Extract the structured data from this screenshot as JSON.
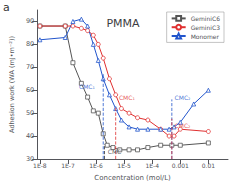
{
  "chart_data": {
    "type": "line",
    "title": "PMMA",
    "panel_label": "a",
    "xlabel": "Concentration (mol/L)",
    "ylabel": "Adhesion work (WA (mJ•m⁻²))",
    "log": "x",
    "grid": false,
    "legend": "upper right",
    "xlim": [
      8e-09,
      0.05
    ],
    "xticks": [
      {
        "value": 1e-08,
        "label": "1E-8"
      },
      {
        "value": 1e-07,
        "label": "1E-7"
      },
      {
        "value": 1e-06,
        "label": "1E-6"
      },
      {
        "value": 1e-05,
        "label": "1E-5"
      },
      {
        "value": 0.0001,
        "label": "1E-4"
      },
      0.001,
      0.01
    ],
    "ylim": [
      30,
      95
    ],
    "yticks": [
      30,
      40,
      50,
      60,
      70,
      80,
      90
    ],
    "series": [
      {
        "name": "GeminiC6",
        "color": "#555555",
        "marker": "square",
        "x": [
          1e-08,
          8e-08,
          1.5e-07,
          3e-07,
          5e-07,
          8e-07,
          1.2e-06,
          1.8e-06,
          2.5e-06,
          4e-06,
          7e-06,
          1.5e-05,
          3e-05,
          7e-05,
          0.0002,
          0.0005,
          0.001,
          0.01
        ],
        "values": [
          88,
          88,
          72,
          63,
          57,
          51,
          50,
          41,
          36,
          35,
          34,
          34,
          34,
          35,
          36,
          36,
          36,
          37
        ]
      },
      {
        "name": "GeminiC3",
        "color": "#e03030",
        "marker": "circle",
        "x": [
          1e-08,
          8e-08,
          1.5e-07,
          3e-07,
          5e-07,
          8e-07,
          1.2e-06,
          1.8e-06,
          3e-06,
          5e-06,
          8e-06,
          1.5e-05,
          3e-05,
          7e-05,
          0.0002,
          0.0004,
          0.0006,
          0.001,
          0.01
        ],
        "values": [
          88,
          88,
          88,
          87,
          86,
          84,
          80,
          74,
          65,
          58,
          52,
          50,
          48,
          47,
          43,
          40,
          40,
          43,
          42
        ]
      },
      {
        "name": "Monomer",
        "color": "#2255cc",
        "marker": "triangle",
        "x": [
          1e-08,
          8e-08,
          1.5e-07,
          3e-07,
          5e-07,
          8e-07,
          1.2e-06,
          1.8e-06,
          3e-06,
          5e-06,
          8e-06,
          1.5e-05,
          3e-05,
          7e-05,
          0.0002,
          0.0004,
          0.0006,
          0.001,
          0.003,
          0.01
        ],
        "values": [
          82,
          83,
          90,
          91,
          88,
          80,
          73,
          65,
          58,
          52,
          47,
          44,
          43,
          43,
          43,
          43,
          44,
          46,
          54,
          60
        ]
      }
    ],
    "vlines": [
      {
        "x": 2e-06,
        "y": [
          30,
          36.5
        ],
        "color": "#333333",
        "line_style": "dashed"
      },
      {
        "x": 1.8e-06,
        "y": [
          30,
          67.05
        ],
        "color": "#2255cc",
        "line_style": "dashed"
      },
      {
        "x": 5e-06,
        "y": [
          30,
          52.75
        ],
        "color": "#e03030",
        "line_style": "dashed"
      },
      {
        "x": 0.0005,
        "y": [
          30,
          56
        ],
        "color": "#2255cc",
        "line_style": "dashed"
      },
      {
        "x": 0.0005,
        "y": [
          30,
          47.55
        ],
        "color": "#e03030",
        "line_style": "dashed"
      }
    ],
    "annotations": [
      {
        "text": "CMC",
        "x": 2.4e-06,
        "y": 31.5,
        "color": "#333333",
        "align": "left"
      },
      {
        "text": "CMC₁",
        "x": 9.9e-07,
        "y": 60,
        "color": "#2255cc",
        "align": "right"
      },
      {
        "text": "CMC₁",
        "x": 6e-06,
        "y": 55,
        "color": "#e03030",
        "align": "left"
      },
      {
        "text": "CMC₂",
        "x": 0.000575,
        "y": 55,
        "color": "#2255cc",
        "align": "left"
      },
      {
        "text": "CMC₂",
        "x": 0.000575,
        "y": 43,
        "color": "#e03030",
        "align": "left"
      }
    ]
  }
}
